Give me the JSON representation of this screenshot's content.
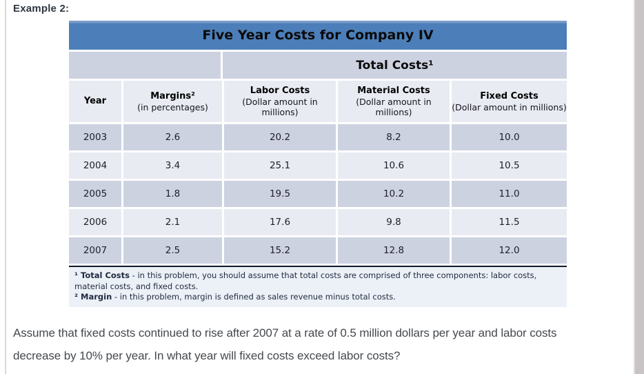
{
  "example": {
    "label": "Example 2:"
  },
  "table": {
    "title": "Five Year Costs for Company IV",
    "group_header": "Total Costs¹",
    "columns": [
      {
        "label": "Year",
        "sub": ""
      },
      {
        "label": "Margins²",
        "sub": "(in percentages)"
      },
      {
        "label": "Labor Costs",
        "sub": "(Dollar amount in millions)"
      },
      {
        "label": "Material Costs",
        "sub": "(Dollar amount in millions)"
      },
      {
        "label": "Fixed Costs",
        "sub": "(Dollar amount in millions)"
      }
    ],
    "rows": [
      [
        "2003",
        "2.6",
        "20.2",
        "8.2",
        "10.0"
      ],
      [
        "2004",
        "3.4",
        "25.1",
        "10.6",
        "10.5"
      ],
      [
        "2005",
        "1.8",
        "19.5",
        "10.2",
        "11.0"
      ],
      [
        "2006",
        "2.1",
        "17.6",
        "9.8",
        "11.5"
      ],
      [
        "2007",
        "2.5",
        "15.2",
        "12.8",
        "12.0"
      ]
    ],
    "footnotes": [
      {
        "term": "¹ Total Costs",
        "text": "- in this problem, you should assume that total costs are comprised of three components: labor costs, material costs, and fixed costs."
      },
      {
        "term": "² Margin",
        "text": "- in this problem, margin is defined as sales revenue minus total costs."
      }
    ]
  },
  "question": {
    "line1": "Assume that fixed costs continued to rise after 2007 at a rate of 0.5 million dollars per year and labor costs",
    "line2": "decrease by 10% per year. In what year will fixed costs exceed labor costs?"
  },
  "colors": {
    "title_bar_blue": "#4c7fb9",
    "row_dark": "#cdd2e1",
    "row_light": "#e9ebf3",
    "footnote_bg": "#ecf0f7"
  }
}
